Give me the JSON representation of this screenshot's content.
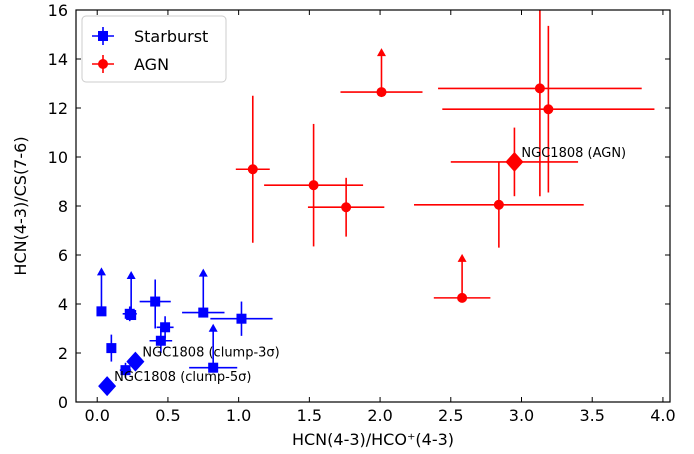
{
  "chart_data": {
    "type": "scatter",
    "xlabel": "HCN(4-3)/HCO⁺(4-3)",
    "ylabel": "HCN(4-3)/CS(7-6)",
    "xlim": [
      -0.15,
      4.05
    ],
    "ylim": [
      0,
      16
    ],
    "x_ticks": [
      0.0,
      0.5,
      1.0,
      1.5,
      2.0,
      2.5,
      3.0,
      3.5,
      4.0
    ],
    "x_tick_labels": [
      "0.0",
      "0.5",
      "1.0",
      "1.5",
      "2.0",
      "2.5",
      "3.0",
      "3.5",
      "4.0"
    ],
    "y_ticks": [
      0,
      2,
      4,
      6,
      8,
      10,
      12,
      14,
      16
    ],
    "y_tick_labels": [
      "0",
      "2",
      "4",
      "6",
      "8",
      "10",
      "12",
      "14",
      "16"
    ],
    "legend": {
      "placement": "top-left",
      "entries": [
        "Starburst",
        "AGN"
      ]
    },
    "series": [
      {
        "name": "Starburst",
        "color": "#0000ff",
        "marker": "square",
        "points": [
          {
            "x": 0.03,
            "y": 3.7,
            "xerr": null,
            "yerr": null,
            "lower_limit": true
          },
          {
            "x": 0.1,
            "y": 2.2,
            "xerr": [
              0.03,
              0.03
            ],
            "yerr": [
              0.55,
              0.55
            ],
            "lower_limit": false
          },
          {
            "x": 0.2,
            "y": 1.3,
            "xerr": [
              0.04,
              0.04
            ],
            "yerr": [
              0.3,
              0.3
            ],
            "lower_limit": false
          },
          {
            "x": 0.23,
            "y": 3.6,
            "xerr": [
              0.05,
              0.05
            ],
            "yerr": [
              0.3,
              0.3
            ],
            "lower_limit": false
          },
          {
            "x": 0.24,
            "y": 3.55,
            "xerr": null,
            "yerr": null,
            "lower_limit": true
          },
          {
            "x": 0.41,
            "y": 4.1,
            "xerr": [
              0.11,
              0.11
            ],
            "yerr": [
              1.1,
              0.9
            ],
            "lower_limit": false
          },
          {
            "x": 0.45,
            "y": 2.5,
            "xerr": [
              0.08,
              0.08
            ],
            "yerr": [
              0.5,
              0.5
            ],
            "lower_limit": false
          },
          {
            "x": 0.48,
            "y": 3.05,
            "xerr": [
              0.06,
              0.06
            ],
            "yerr": [
              0.45,
              0.45
            ],
            "lower_limit": false
          },
          {
            "x": 0.75,
            "y": 3.65,
            "xerr": [
              0.15,
              0.15
            ],
            "yerr": null,
            "lower_limit": true
          },
          {
            "x": 0.82,
            "y": 1.4,
            "xerr": [
              0.17,
              0.17
            ],
            "yerr": null,
            "lower_limit": true
          },
          {
            "x": 1.02,
            "y": 3.4,
            "xerr": [
              0.22,
              0.22
            ],
            "yerr": [
              0.7,
              0.7
            ],
            "lower_limit": false
          }
        ]
      },
      {
        "name": "AGN",
        "color": "#ff0000",
        "marker": "circle",
        "points": [
          {
            "x": 1.1,
            "y": 9.5,
            "xerr": [
              0.12,
              0.12
            ],
            "yerr": [
              3.0,
              3.0
            ],
            "lower_limit": false
          },
          {
            "x": 1.53,
            "y": 8.85,
            "xerr": [
              0.35,
              0.35
            ],
            "yerr": [
              2.5,
              2.5
            ],
            "lower_limit": false
          },
          {
            "x": 1.76,
            "y": 7.95,
            "xerr": [
              0.27,
              0.27
            ],
            "yerr": [
              1.2,
              1.2
            ],
            "lower_limit": false
          },
          {
            "x": 2.01,
            "y": 12.65,
            "xerr": [
              0.29,
              0.29
            ],
            "yerr": null,
            "lower_limit": true
          },
          {
            "x": 2.58,
            "y": 4.25,
            "xerr": [
              0.2,
              0.2
            ],
            "yerr": null,
            "lower_limit": true
          },
          {
            "x": 2.84,
            "y": 8.05,
            "xerr": [
              0.6,
              0.6
            ],
            "yerr": [
              1.75,
              1.75
            ],
            "lower_limit": false
          },
          {
            "x": 3.13,
            "y": 12.8,
            "xerr": [
              0.72,
              0.72
            ],
            "yerr": [
              4.4,
              3.2
            ],
            "lower_limit": false
          },
          {
            "x": 3.19,
            "y": 11.95,
            "xerr": [
              0.75,
              0.75
            ],
            "yerr": [
              3.4,
              3.4
            ],
            "lower_limit": false
          }
        ]
      }
    ],
    "highlights": [
      {
        "label": "NGC1808 (AGN)",
        "x": 2.95,
        "y": 9.8,
        "xerr": [
          0.45,
          0.45
        ],
        "yerr": [
          1.4,
          1.4
        ],
        "color": "#ff0000"
      },
      {
        "label": "NGC1808 (clump-3σ)",
        "x": 0.27,
        "y": 1.65,
        "xerr": null,
        "yerr": null,
        "color": "#0000ff"
      },
      {
        "label": "NGC1808 (clump-5σ)",
        "x": 0.07,
        "y": 0.65,
        "xerr": null,
        "yerr": null,
        "color": "#0000ff"
      }
    ]
  }
}
